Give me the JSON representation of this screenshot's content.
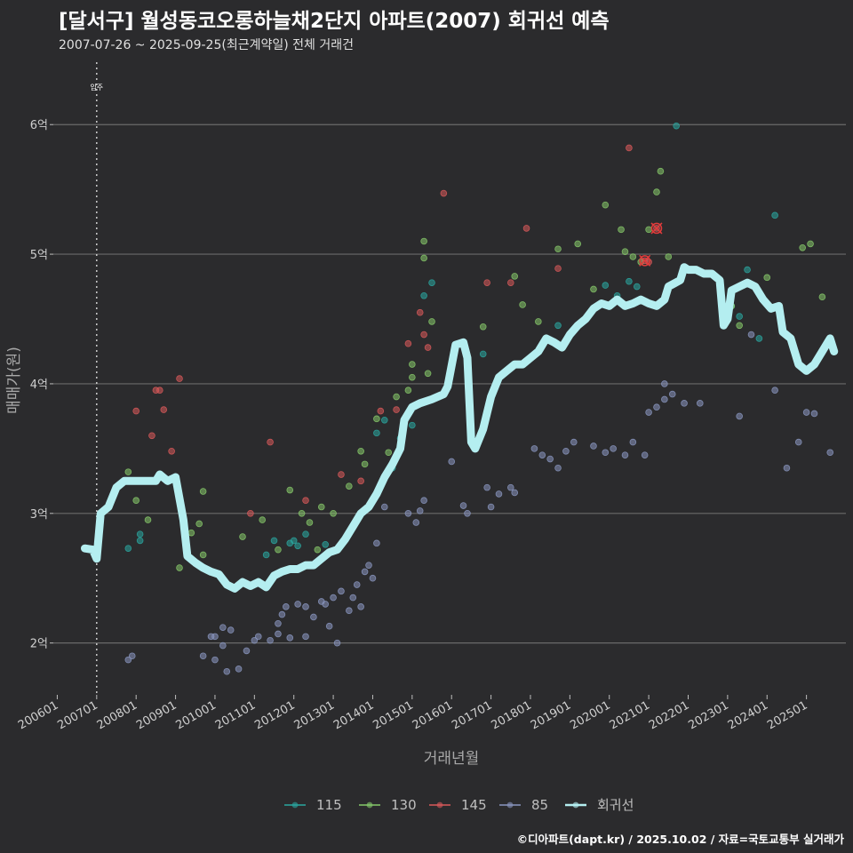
{
  "title": "[달서구] 월성동코오롱하늘채2단지 아파트(2007) 회귀선 예측",
  "subtitle": "2007-07-26 ~ 2025-09-25(최근계약일) 전체 거래건",
  "caption": "©디아파트(dapt.kr) / 2025.10.02 / 자료=국토교통부 실거래가",
  "chart_data": {
    "type": "scatter",
    "title": "[달서구] 월성동코오롱하늘채2단지 아파트(2007) 회귀선 예측",
    "xlabel": "거래년월",
    "ylabel": "매매가(원)",
    "xlim": [
      2005.9,
      2026.0
    ],
    "ylim": [
      1.6,
      6.55
    ],
    "yticks": [
      2,
      3,
      4,
      5,
      6
    ],
    "ytick_labels": [
      "2억",
      "3억",
      "4억",
      "5억",
      "6억"
    ],
    "xticks": [
      2006,
      2007,
      2008,
      2009,
      2010,
      2011,
      2012,
      2013,
      2014,
      2015,
      2016,
      2017,
      2018,
      2019,
      2020,
      2021,
      2022,
      2023,
      2024,
      2025
    ],
    "xtick_labels": [
      "200601",
      "200701",
      "200801",
      "200901",
      "201001",
      "201101",
      "201201",
      "201301",
      "201401",
      "201501",
      "201601",
      "201701",
      "201801",
      "201901",
      "202001",
      "202101",
      "202201",
      "202301",
      "202401",
      "202501"
    ],
    "annotation": {
      "x": 2007.0,
      "label": "입주"
    },
    "legend": [
      "115",
      "130",
      "145",
      "85",
      "회귀선"
    ],
    "colors": {
      "115": "#2aa7a0",
      "130": "#86c96a",
      "145": "#d9595a",
      "85": "#8a96c0",
      "회귀선": "#b4eef0"
    },
    "series": [
      {
        "name": "115",
        "points": [
          [
            2007.8,
            2.73
          ],
          [
            2008.1,
            2.79
          ],
          [
            2008.1,
            2.84
          ],
          [
            2011.3,
            2.68
          ],
          [
            2011.5,
            2.79
          ],
          [
            2011.9,
            2.77
          ],
          [
            2012.0,
            2.79
          ],
          [
            2012.1,
            2.75
          ],
          [
            2012.3,
            2.84
          ],
          [
            2012.8,
            2.76
          ],
          [
            2014.1,
            3.62
          ],
          [
            2014.3,
            3.72
          ],
          [
            2014.5,
            3.35
          ],
          [
            2014.7,
            3.58
          ],
          [
            2015.0,
            3.68
          ],
          [
            2015.3,
            4.68
          ],
          [
            2015.5,
            4.78
          ],
          [
            2016.8,
            4.23
          ],
          [
            2018.7,
            4.45
          ],
          [
            2019.9,
            4.76
          ],
          [
            2020.2,
            4.68
          ],
          [
            2020.5,
            4.79
          ],
          [
            2020.7,
            4.75
          ],
          [
            2021.7,
            5.99
          ],
          [
            2023.1,
            4.72
          ],
          [
            2023.3,
            4.52
          ],
          [
            2023.5,
            4.88
          ],
          [
            2023.8,
            4.35
          ],
          [
            2024.2,
            5.3
          ],
          [
            2023.1,
            4.6
          ]
        ]
      },
      {
        "name": "130",
        "points": [
          [
            2007.8,
            3.32
          ],
          [
            2008.0,
            3.1
          ],
          [
            2008.3,
            2.95
          ],
          [
            2009.1,
            2.58
          ],
          [
            2009.4,
            2.85
          ],
          [
            2009.6,
            2.92
          ],
          [
            2009.7,
            3.17
          ],
          [
            2009.7,
            2.68
          ],
          [
            2010.7,
            2.82
          ],
          [
            2011.2,
            2.95
          ],
          [
            2011.6,
            2.72
          ],
          [
            2011.9,
            3.18
          ],
          [
            2012.2,
            3.0
          ],
          [
            2012.4,
            2.93
          ],
          [
            2012.6,
            2.72
          ],
          [
            2012.7,
            3.05
          ],
          [
            2013.0,
            3.0
          ],
          [
            2013.4,
            3.21
          ],
          [
            2013.7,
            3.48
          ],
          [
            2013.8,
            3.38
          ],
          [
            2014.1,
            3.73
          ],
          [
            2014.4,
            3.47
          ],
          [
            2014.6,
            3.9
          ],
          [
            2014.9,
            3.95
          ],
          [
            2015.0,
            4.05
          ],
          [
            2015.0,
            4.15
          ],
          [
            2015.3,
            5.1
          ],
          [
            2015.3,
            4.97
          ],
          [
            2015.4,
            4.08
          ],
          [
            2015.5,
            4.48
          ],
          [
            2016.8,
            4.44
          ],
          [
            2017.6,
            4.83
          ],
          [
            2017.8,
            4.61
          ],
          [
            2018.2,
            4.48
          ],
          [
            2018.7,
            5.04
          ],
          [
            2019.2,
            5.08
          ],
          [
            2019.6,
            4.73
          ],
          [
            2019.9,
            5.38
          ],
          [
            2020.3,
            5.19
          ],
          [
            2020.4,
            5.02
          ],
          [
            2020.6,
            4.98
          ],
          [
            2020.8,
            4.94
          ],
          [
            2021.0,
            5.19
          ],
          [
            2021.2,
            5.48
          ],
          [
            2021.3,
            5.64
          ],
          [
            2021.3,
            4.62
          ],
          [
            2021.5,
            4.98
          ],
          [
            2023.1,
            4.6
          ],
          [
            2023.3,
            4.45
          ],
          [
            2024.0,
            4.82
          ],
          [
            2024.9,
            5.05
          ],
          [
            2025.1,
            5.08
          ],
          [
            2025.4,
            4.67
          ]
        ]
      },
      {
        "name": "145",
        "points": [
          [
            2008.0,
            3.79
          ],
          [
            2008.4,
            3.6
          ],
          [
            2008.5,
            3.95
          ],
          [
            2008.6,
            3.95
          ],
          [
            2008.7,
            3.8
          ],
          [
            2008.9,
            3.48
          ],
          [
            2009.1,
            4.04
          ],
          [
            2010.9,
            3.0
          ],
          [
            2011.4,
            3.55
          ],
          [
            2012.3,
            3.1
          ],
          [
            2013.2,
            3.3
          ],
          [
            2013.7,
            3.25
          ],
          [
            2014.2,
            3.79
          ],
          [
            2014.6,
            3.8
          ],
          [
            2014.9,
            4.31
          ],
          [
            2015.2,
            4.55
          ],
          [
            2015.3,
            4.38
          ],
          [
            2015.4,
            4.28
          ],
          [
            2015.8,
            5.47
          ],
          [
            2016.9,
            4.78
          ],
          [
            2017.5,
            4.78
          ],
          [
            2017.9,
            5.2
          ],
          [
            2018.7,
            4.89
          ],
          [
            2020.5,
            5.82
          ],
          [
            2020.9,
            4.95
          ],
          [
            2021.0,
            4.94
          ],
          [
            2021.2,
            5.2
          ]
        ]
      },
      {
        "name": "85",
        "points": [
          [
            2007.8,
            1.87
          ],
          [
            2007.9,
            1.9
          ],
          [
            2009.7,
            1.9
          ],
          [
            2009.9,
            2.05
          ],
          [
            2010.0,
            2.05
          ],
          [
            2010.0,
            1.87
          ],
          [
            2010.2,
            2.12
          ],
          [
            2010.2,
            1.98
          ],
          [
            2010.3,
            1.78
          ],
          [
            2010.4,
            2.1
          ],
          [
            2010.6,
            1.8
          ],
          [
            2010.8,
            1.94
          ],
          [
            2011.0,
            2.02
          ],
          [
            2011.1,
            2.05
          ],
          [
            2011.4,
            2.02
          ],
          [
            2011.6,
            2.07
          ],
          [
            2011.6,
            2.15
          ],
          [
            2011.7,
            2.22
          ],
          [
            2011.8,
            2.28
          ],
          [
            2011.9,
            2.04
          ],
          [
            2012.1,
            2.3
          ],
          [
            2012.3,
            2.28
          ],
          [
            2012.3,
            2.05
          ],
          [
            2012.5,
            2.2
          ],
          [
            2012.7,
            2.32
          ],
          [
            2012.8,
            2.3
          ],
          [
            2012.9,
            2.13
          ],
          [
            2013.0,
            2.35
          ],
          [
            2013.1,
            2.0
          ],
          [
            2013.2,
            2.4
          ],
          [
            2013.4,
            2.25
          ],
          [
            2013.5,
            2.35
          ],
          [
            2013.6,
            2.45
          ],
          [
            2013.7,
            2.28
          ],
          [
            2013.8,
            2.55
          ],
          [
            2013.9,
            2.6
          ],
          [
            2014.0,
            2.5
          ],
          [
            2014.1,
            2.77
          ],
          [
            2014.3,
            3.05
          ],
          [
            2014.9,
            3.0
          ],
          [
            2015.1,
            2.93
          ],
          [
            2015.2,
            3.02
          ],
          [
            2015.3,
            3.1
          ],
          [
            2016.0,
            3.4
          ],
          [
            2016.3,
            3.06
          ],
          [
            2016.4,
            3.0
          ],
          [
            2016.9,
            3.2
          ],
          [
            2017.0,
            3.05
          ],
          [
            2017.2,
            3.15
          ],
          [
            2017.5,
            3.2
          ],
          [
            2017.6,
            3.16
          ],
          [
            2018.1,
            3.5
          ],
          [
            2018.3,
            3.45
          ],
          [
            2018.5,
            3.42
          ],
          [
            2018.7,
            3.35
          ],
          [
            2018.9,
            3.48
          ],
          [
            2019.1,
            3.55
          ],
          [
            2019.6,
            3.52
          ],
          [
            2019.9,
            3.47
          ],
          [
            2020.1,
            3.5
          ],
          [
            2020.4,
            3.45
          ],
          [
            2020.6,
            3.55
          ],
          [
            2020.9,
            3.45
          ],
          [
            2021.0,
            3.78
          ],
          [
            2021.2,
            3.82
          ],
          [
            2021.4,
            4.0
          ],
          [
            2021.4,
            3.88
          ],
          [
            2021.6,
            3.92
          ],
          [
            2021.9,
            3.85
          ],
          [
            2022.3,
            3.85
          ],
          [
            2023.3,
            3.75
          ],
          [
            2023.6,
            4.38
          ],
          [
            2024.2,
            3.95
          ],
          [
            2024.5,
            3.35
          ],
          [
            2024.8,
            3.55
          ],
          [
            2025.0,
            3.78
          ],
          [
            2025.2,
            3.77
          ],
          [
            2025.6,
            3.47
          ]
        ]
      }
    ],
    "highlights": [
      [
        2021.2,
        5.2
      ],
      [
        2020.9,
        4.95
      ]
    ],
    "regression": [
      [
        2006.7,
        2.73
      ],
      [
        2006.9,
        2.72
      ],
      [
        2007.0,
        2.65
      ],
      [
        2007.1,
        3.0
      ],
      [
        2007.3,
        3.05
      ],
      [
        2007.5,
        3.2
      ],
      [
        2007.7,
        3.25
      ],
      [
        2008.0,
        3.25
      ],
      [
        2008.3,
        3.25
      ],
      [
        2008.5,
        3.25
      ],
      [
        2008.6,
        3.3
      ],
      [
        2008.8,
        3.25
      ],
      [
        2009.0,
        3.28
      ],
      [
        2009.2,
        2.95
      ],
      [
        2009.3,
        2.67
      ],
      [
        2009.5,
        2.62
      ],
      [
        2009.7,
        2.58
      ],
      [
        2009.9,
        2.55
      ],
      [
        2010.1,
        2.53
      ],
      [
        2010.3,
        2.45
      ],
      [
        2010.5,
        2.42
      ],
      [
        2010.7,
        2.47
      ],
      [
        2010.9,
        2.44
      ],
      [
        2011.1,
        2.47
      ],
      [
        2011.3,
        2.43
      ],
      [
        2011.5,
        2.52
      ],
      [
        2011.7,
        2.55
      ],
      [
        2011.9,
        2.57
      ],
      [
        2012.1,
        2.57
      ],
      [
        2012.3,
        2.6
      ],
      [
        2012.5,
        2.6
      ],
      [
        2012.7,
        2.65
      ],
      [
        2012.9,
        2.7
      ],
      [
        2013.1,
        2.72
      ],
      [
        2013.3,
        2.8
      ],
      [
        2013.5,
        2.9
      ],
      [
        2013.7,
        3.0
      ],
      [
        2013.9,
        3.05
      ],
      [
        2014.1,
        3.15
      ],
      [
        2014.3,
        3.28
      ],
      [
        2014.5,
        3.38
      ],
      [
        2014.7,
        3.5
      ],
      [
        2014.8,
        3.72
      ],
      [
        2015.0,
        3.82
      ],
      [
        2015.2,
        3.85
      ],
      [
        2015.5,
        3.88
      ],
      [
        2015.8,
        3.92
      ],
      [
        2015.9,
        3.98
      ],
      [
        2016.1,
        4.3
      ],
      [
        2016.3,
        4.32
      ],
      [
        2016.4,
        4.2
      ],
      [
        2016.5,
        3.55
      ],
      [
        2016.6,
        3.5
      ],
      [
        2016.8,
        3.65
      ],
      [
        2017.0,
        3.9
      ],
      [
        2017.2,
        4.05
      ],
      [
        2017.4,
        4.1
      ],
      [
        2017.6,
        4.15
      ],
      [
        2017.8,
        4.15
      ],
      [
        2018.0,
        4.2
      ],
      [
        2018.2,
        4.25
      ],
      [
        2018.4,
        4.35
      ],
      [
        2018.6,
        4.32
      ],
      [
        2018.8,
        4.28
      ],
      [
        2019.0,
        4.38
      ],
      [
        2019.2,
        4.45
      ],
      [
        2019.4,
        4.5
      ],
      [
        2019.6,
        4.58
      ],
      [
        2019.8,
        4.62
      ],
      [
        2020.0,
        4.6
      ],
      [
        2020.2,
        4.65
      ],
      [
        2020.4,
        4.6
      ],
      [
        2020.6,
        4.62
      ],
      [
        2020.8,
        4.65
      ],
      [
        2021.0,
        4.62
      ],
      [
        2021.2,
        4.6
      ],
      [
        2021.4,
        4.65
      ],
      [
        2021.5,
        4.75
      ],
      [
        2021.8,
        4.8
      ],
      [
        2021.9,
        4.9
      ],
      [
        2022.0,
        4.88
      ],
      [
        2022.2,
        4.88
      ],
      [
        2022.4,
        4.85
      ],
      [
        2022.6,
        4.85
      ],
      [
        2022.8,
        4.8
      ],
      [
        2022.9,
        4.45
      ],
      [
        2023.0,
        4.5
      ],
      [
        2023.1,
        4.72
      ],
      [
        2023.3,
        4.75
      ],
      [
        2023.5,
        4.78
      ],
      [
        2023.7,
        4.75
      ],
      [
        2023.9,
        4.65
      ],
      [
        2024.1,
        4.58
      ],
      [
        2024.3,
        4.6
      ],
      [
        2024.4,
        4.4
      ],
      [
        2024.6,
        4.35
      ],
      [
        2024.8,
        4.15
      ],
      [
        2025.0,
        4.1
      ],
      [
        2025.2,
        4.15
      ],
      [
        2025.4,
        4.25
      ],
      [
        2025.5,
        4.3
      ],
      [
        2025.6,
        4.35
      ],
      [
        2025.7,
        4.25
      ]
    ]
  }
}
